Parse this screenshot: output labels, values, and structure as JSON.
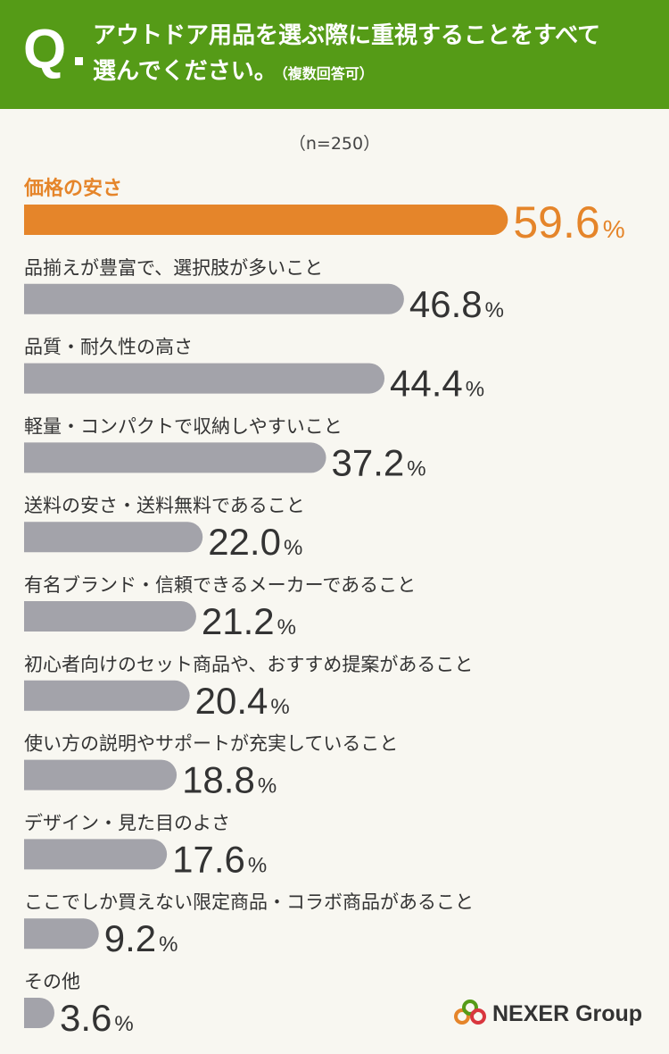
{
  "header": {
    "q_mark": "Q",
    "question_line1": "アウトドア用品を選ぶ際に重視することをすべて",
    "question_line2": "選んでください。",
    "question_note": "（複数回答可）"
  },
  "sample_size": "（n=250）",
  "colors": {
    "header_bg": "#559b17",
    "highlight": "#e5852a",
    "bar": "#a3a3aa",
    "background": "#f8f7f1"
  },
  "chart_data": {
    "type": "bar",
    "orientation": "horizontal",
    "unit": "%",
    "categories": [
      "価格の安さ",
      "品揃えが豊富で、選択肢が多いこと",
      "品質・耐久性の高さ",
      "軽量・コンパクトで収納しやすいこと",
      "送料の安さ・送料無料であること",
      "有名ブランド・信頼できるメーカーであること",
      "初心者向けのセット商品や、おすすめ提案があること",
      "使い方の説明やサポートが充実していること",
      "デザイン・見た目のよさ",
      "ここでしか買えない限定商品・コラボ商品があること",
      "その他"
    ],
    "values": [
      59.6,
      46.8,
      44.4,
      37.2,
      22.0,
      21.2,
      20.4,
      18.8,
      17.6,
      9.2,
      3.6
    ],
    "value_labels": [
      "59.6",
      "46.8",
      "44.4",
      "37.2",
      "22.0",
      "21.2",
      "20.4",
      "18.8",
      "17.6",
      "9.2",
      "3.6"
    ],
    "highlight_index": 0
  },
  "logo": {
    "text": "NEXER Group"
  }
}
